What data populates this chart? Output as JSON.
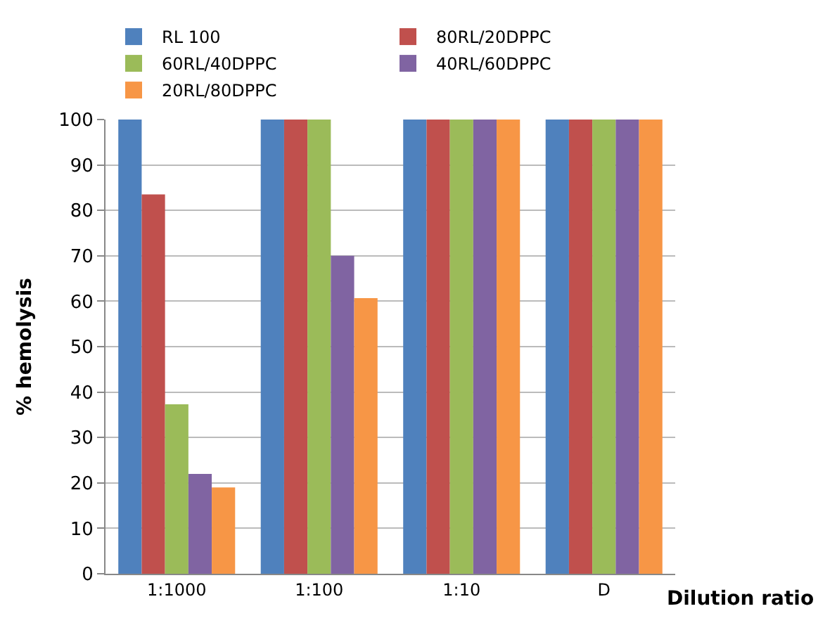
{
  "chart_data": {
    "type": "bar",
    "categories": [
      "1:1000",
      "1:100",
      "1:10",
      "D"
    ],
    "series": [
      {
        "name": "RL 100",
        "color": "#4f81bd",
        "values": [
          100,
          100,
          100,
          100
        ]
      },
      {
        "name": "80RL/20DPPC",
        "color": "#c0504d",
        "values": [
          83.5,
          100,
          100,
          100
        ]
      },
      {
        "name": "60RL/40DPPC",
        "color": "#9bbb59",
        "values": [
          37.3,
          100,
          100,
          100
        ]
      },
      {
        "name": "40RL/60DPPC",
        "color": "#8064a2",
        "values": [
          22,
          70,
          100,
          100
        ]
      },
      {
        "name": "20RL/80DPPC",
        "color": "#f79646",
        "values": [
          19,
          60.7,
          100,
          100
        ]
      }
    ],
    "ylabel": "% hemolysis",
    "xlabel": "Dilution ratio",
    "ylim": [
      0,
      100
    ],
    "yticks": [
      0,
      10,
      20,
      30,
      40,
      50,
      60,
      70,
      80,
      90,
      100
    ],
    "grid": "y",
    "legend": "top"
  }
}
